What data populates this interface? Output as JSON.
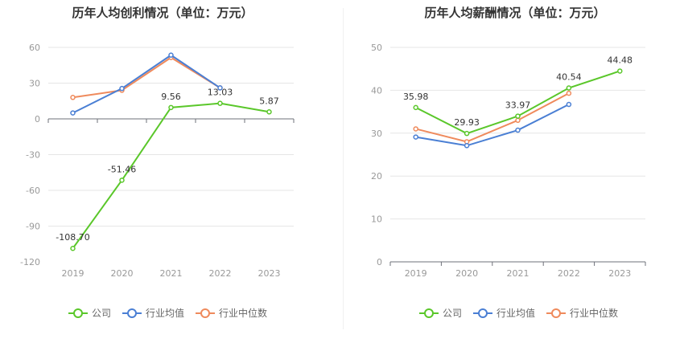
{
  "chart_data": [
    {
      "type": "line",
      "title": "历年人均创利情况（单位：万元）",
      "categories": [
        "2019",
        "2020",
        "2021",
        "2022",
        "2023"
      ],
      "ylim": [
        -120,
        60
      ],
      "yticks": [
        60,
        30,
        0,
        -30,
        -60,
        -90,
        -120
      ],
      "grid": true,
      "legend_position": "bottom",
      "series": [
        {
          "name": "公司",
          "color": "#5ac72a",
          "values": [
            -108.7,
            -51.46,
            9.56,
            13.03,
            5.87
          ],
          "labels": [
            "-108.70",
            "-51.46",
            "9.56",
            "13.03",
            "5.87"
          ]
        },
        {
          "name": "行业均值",
          "color": "#4a7fd4",
          "values": [
            5,
            25.5,
            53.5,
            26,
            null
          ]
        },
        {
          "name": "行业中位数",
          "color": "#ef8a5c",
          "values": [
            18,
            24,
            51.5,
            26,
            null
          ]
        }
      ]
    },
    {
      "type": "line",
      "title": "历年人均薪酬情况（单位：万元）",
      "categories": [
        "2019",
        "2020",
        "2021",
        "2022",
        "2023"
      ],
      "ylim": [
        0,
        50
      ],
      "yticks": [
        50,
        40,
        30,
        20,
        10,
        0
      ],
      "grid": true,
      "legend_position": "bottom",
      "series": [
        {
          "name": "公司",
          "color": "#5ac72a",
          "values": [
            35.98,
            29.93,
            33.97,
            40.54,
            44.48
          ],
          "labels": [
            "35.98",
            "29.93",
            "33.97",
            "40.54",
            "44.48"
          ]
        },
        {
          "name": "行业均值",
          "color": "#4a7fd4",
          "values": [
            29.1,
            27.1,
            30.7,
            36.7,
            null
          ]
        },
        {
          "name": "行业中位数",
          "color": "#ef8a5c",
          "values": [
            31,
            28,
            33,
            39.3,
            null
          ]
        }
      ]
    }
  ]
}
